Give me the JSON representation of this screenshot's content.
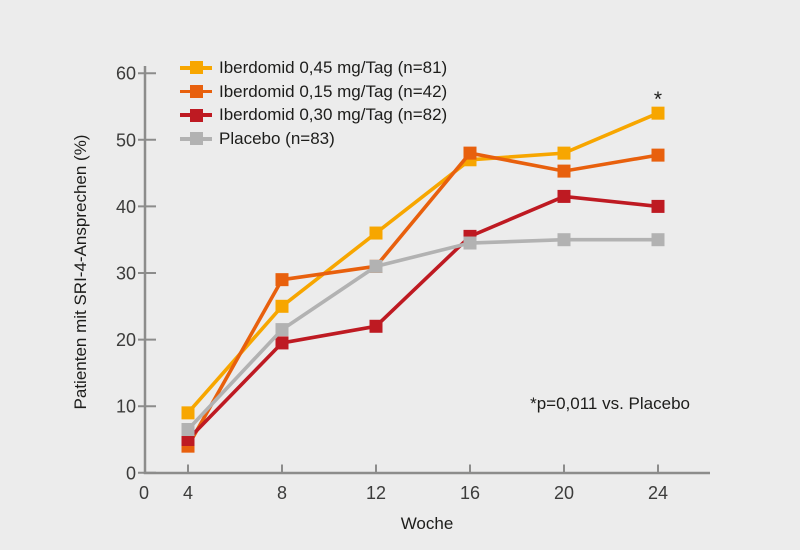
{
  "page": {
    "background": "#ECECEC"
  },
  "axis_style": {
    "line_color": "#8C8C8B",
    "text_color": "#3C3C3B"
  },
  "chart_data": {
    "type": "line",
    "title": "",
    "xlabel": "Woche",
    "ylabel": "Patienten mit SRI-4-Ansprechen (%)",
    "x": [
      4,
      8,
      12,
      16,
      20,
      24
    ],
    "x_ticks": [
      4,
      8,
      12,
      16,
      20,
      24
    ],
    "x_origin_label": "0",
    "y_ticks": [
      0,
      10,
      20,
      30,
      40,
      50,
      60
    ],
    "ylim": [
      0,
      60
    ],
    "grid": false,
    "legend_position": "top-left-inside",
    "series": [
      {
        "name": "Iberdomid 0,45 mg/Tag (n=81)",
        "color": "#F7A600",
        "values": [
          9,
          25,
          36,
          47,
          48,
          54
        ]
      },
      {
        "name": "Iberdomid 0,15 mg/Tag (n=42)",
        "color": "#E8600D",
        "values": [
          4,
          29,
          31,
          48,
          45.3,
          47.7
        ]
      },
      {
        "name": "Iberdomid 0,30 mg/Tag (n=82)",
        "color": "#BE1A22",
        "values": [
          5,
          19.5,
          22,
          35.5,
          41.5,
          40
        ]
      },
      {
        "name": "Placebo (n=83)",
        "color": "#B2B2B2",
        "values": [
          6.5,
          21.5,
          31,
          34.5,
          35,
          35
        ]
      }
    ],
    "annotation": "*p=0,011 vs. Placebo",
    "significance": {
      "symbol": "*",
      "series": "Iberdomid 0,45 mg/Tag (n=81)",
      "week": 24
    }
  }
}
